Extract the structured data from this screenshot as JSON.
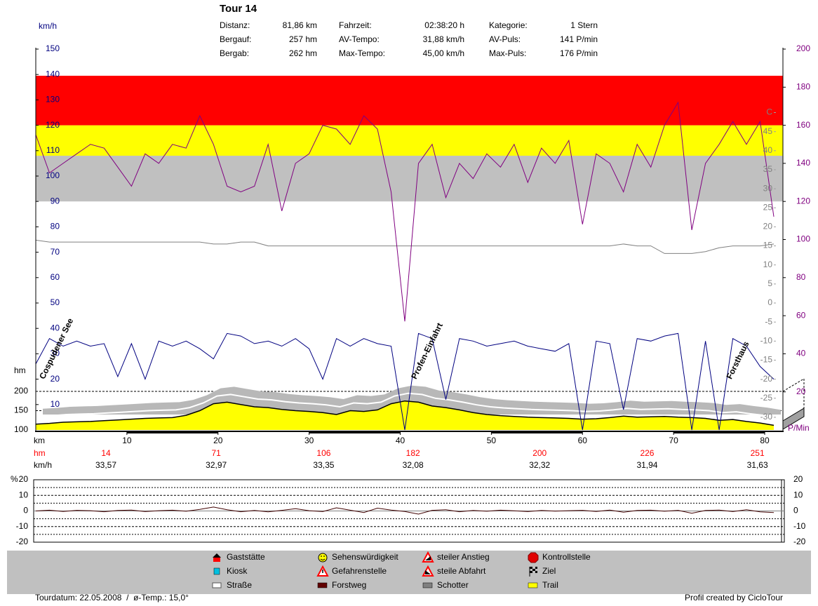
{
  "header": {
    "title": "Tour 14",
    "stats": [
      [
        {
          "label": "Distanz:",
          "value": "81,86 km"
        },
        {
          "label": "Fahrzeit:",
          "value": "02:38:20 h"
        },
        {
          "label": "Kategorie:",
          "value": "1 Stern"
        }
      ],
      [
        {
          "label": "Bergauf:",
          "value": "257 hm"
        },
        {
          "label": "AV-Tempo:",
          "value": "31,88 km/h"
        },
        {
          "label": "AV-Puls:",
          "value": "141 P/min"
        }
      ],
      [
        {
          "label": "Bergab:",
          "value": "262 hm"
        },
        {
          "label": "Max-Tempo:",
          "value": "45,00 km/h"
        },
        {
          "label": "Max-Puls:",
          "value": "176 P/min"
        }
      ]
    ]
  },
  "chart_data": [
    {
      "type": "line",
      "x": [
        0,
        1.5,
        3,
        4.5,
        6,
        7.5,
        9,
        10.5,
        12,
        13.5,
        15,
        16.5,
        18,
        19.5,
        21,
        22.5,
        24,
        25.5,
        27,
        28.5,
        30,
        31.5,
        33,
        34.5,
        36,
        37.5,
        39,
        40.5,
        42,
        43.5,
        45,
        46.5,
        48,
        49.5,
        51,
        52.5,
        54,
        55.5,
        57,
        58.5,
        60,
        61.5,
        63,
        64.5,
        66,
        67.5,
        69,
        70.5,
        72,
        73.5,
        75,
        76.5,
        78,
        79.5,
        81
      ],
      "xlim": [
        0,
        82
      ],
      "xticks": [
        10,
        20,
        30,
        40,
        50,
        60,
        70,
        80
      ],
      "xlabel": "km",
      "ylabel": "km/h",
      "ylim": [
        0,
        150
      ],
      "yticks": [
        10,
        20,
        30,
        40,
        50,
        60,
        70,
        80,
        90,
        100,
        110,
        120,
        130,
        140,
        150
      ],
      "y2label": "P/Min",
      "y2lim": [
        0,
        200
      ],
      "y2ticks": [
        20,
        40,
        60,
        80,
        100,
        120,
        140,
        160,
        180,
        200
      ],
      "y3lim": [
        -33.33,
        66.67
      ],
      "y3ticks": [
        -30,
        -25,
        -20,
        -15,
        -10,
        -5,
        0,
        5,
        10,
        15,
        20,
        25,
        30,
        35,
        40,
        45,
        {
          "value": 50,
          "label": "C"
        }
      ],
      "hmlabel": "hm",
      "hmlim": [
        100,
        1087
      ],
      "hmticks": [
        100,
        150,
        200
      ],
      "zones": [
        {
          "from": 120,
          "to": 144,
          "color": "#c0c0c0"
        },
        {
          "from": 144,
          "to": 160,
          "color": "#ffff00"
        },
        {
          "from": 160,
          "to": 186,
          "color": "#ff0000"
        }
      ],
      "series": [
        {
          "axis": "hm",
          "type": "area",
          "color": "#ffff00",
          "values": [
            115,
            117,
            120,
            121,
            122,
            124,
            126,
            128,
            130,
            131,
            132,
            138,
            150,
            168,
            172,
            166,
            160,
            158,
            153,
            150,
            148,
            145,
            140,
            150,
            148,
            152,
            168,
            175,
            172,
            162,
            158,
            152,
            145,
            140,
            137,
            135,
            133,
            132,
            131,
            130,
            128,
            129,
            132,
            136,
            133,
            134,
            135,
            133,
            132,
            130,
            125,
            127,
            122,
            118,
            112
          ]
        },
        {
          "axis": "y3",
          "color": "#808080",
          "values": [
            16.5,
            16,
            16,
            16,
            16,
            16,
            16,
            16,
            16,
            16,
            16,
            16,
            16,
            15.5,
            15.5,
            16,
            16,
            15,
            15,
            15,
            15,
            15,
            15,
            15,
            15,
            15,
            15,
            15,
            15,
            15,
            15,
            15,
            15,
            15,
            15,
            15,
            15,
            15,
            15,
            15,
            15,
            15,
            15,
            15.5,
            15,
            15,
            13,
            13,
            13,
            13.5,
            14.5,
            15,
            15,
            15,
            15.5
          ]
        },
        {
          "axis": "y2",
          "color": "#800080",
          "values": [
            155,
            135,
            140,
            145,
            150,
            148,
            138,
            128,
            145,
            140,
            150,
            148,
            165,
            150,
            128,
            125,
            128,
            150,
            115,
            140,
            145,
            160,
            158,
            150,
            165,
            158,
            125,
            57,
            140,
            150,
            122,
            140,
            132,
            145,
            138,
            150,
            130,
            148,
            140,
            152,
            108,
            145,
            140,
            125,
            150,
            138,
            160,
            172,
            105,
            140,
            150,
            162,
            150,
            162,
            112
          ]
        },
        {
          "axis": "y",
          "color": "#000080",
          "values": [
            26,
            36,
            33,
            35,
            33,
            34,
            21,
            34,
            20,
            35,
            33,
            35,
            32,
            28,
            38,
            37,
            34,
            35,
            33,
            36,
            32,
            20,
            36,
            33,
            36,
            34,
            33,
            0,
            38,
            36,
            12,
            36,
            35,
            33,
            34,
            35,
            33,
            32,
            31,
            34,
            0,
            35,
            34,
            8,
            36,
            35,
            37,
            38,
            0,
            35,
            0,
            36,
            33,
            25,
            20
          ]
        }
      ],
      "annotations": [
        {
          "text": "Cospudener See",
          "km": 0.4
        },
        {
          "text": "Profen-Einfahrt",
          "km": 41.2
        },
        {
          "text": "Forsthaus",
          "km": 75.8
        }
      ],
      "summary": {
        "hm_label": "hm",
        "speed_label": "km/h",
        "km": [
          7.7,
          19.8,
          31.6,
          41.4,
          55.3,
          67.1,
          79.2
        ],
        "hm": [
          14,
          71,
          106,
          182,
          200,
          226,
          251
        ],
        "speed": [
          33.57,
          32.97,
          33.35,
          32.08,
          32.32,
          31.94,
          31.63
        ],
        "speed_labels": [
          "33,57",
          "32,97",
          "33,35",
          "32,08",
          "32,32",
          "31,94",
          "31,63"
        ]
      }
    },
    {
      "type": "line",
      "ylabel": "%",
      "color": "#400000",
      "x": [
        0,
        1.5,
        3,
        4.5,
        6,
        7.5,
        9,
        10.5,
        12,
        13.5,
        15,
        16.5,
        18,
        19.5,
        21,
        22.5,
        24,
        25.5,
        27,
        28.5,
        30,
        31.5,
        33,
        34.5,
        36,
        37.5,
        39,
        40.5,
        42,
        43.5,
        45,
        46.5,
        48,
        49.5,
        51,
        52.5,
        54,
        55.5,
        57,
        58.5,
        60,
        61.5,
        63,
        64.5,
        66,
        67.5,
        69,
        70.5,
        72,
        73.5,
        75,
        76.5,
        78,
        79.5,
        81
      ],
      "xlim": [
        0,
        82
      ],
      "ylim": [
        -20,
        20
      ],
      "yticks": [
        -20,
        -10,
        0,
        10,
        20
      ],
      "values": [
        0,
        0.5,
        -0.3,
        0.4,
        0.2,
        -0.5,
        0.3,
        0.6,
        -0.4,
        0.2,
        0.5,
        -0.2,
        1,
        2.5,
        0.8,
        -0.5,
        0.3,
        -0.6,
        0.4,
        1.5,
        0.2,
        -0.4,
        2,
        0.5,
        -1,
        1.8,
        0.6,
        -0.3,
        -2,
        0.4,
        0.8,
        -0.5,
        0.3,
        -0.2,
        0.5,
        0.1,
        -0.4,
        0.3,
        -0.1,
        0.2,
        0.4,
        -0.3,
        0.6,
        -0.8,
        0.3,
        0.5,
        -0.2,
        0.4,
        -1.5,
        0.3,
        0.6,
        -0.4,
        0.8,
        -0.6,
        -1
      ]
    }
  ],
  "legend": [
    {
      "label": "Gaststätte"
    },
    {
      "label": "Kiosk"
    },
    {
      "label": "Straße"
    },
    {
      "label": "Sehenswürdigkeit"
    },
    {
      "label": "Gefahrenstelle"
    },
    {
      "label": "Forstweg"
    },
    {
      "label": "steiler Anstieg"
    },
    {
      "label": "steile Abfahrt"
    },
    {
      "label": "Schotter"
    },
    {
      "label": "Kontrollstelle"
    },
    {
      "label": "Ziel"
    },
    {
      "label": "Trail"
    }
  ],
  "footer": {
    "left": "Tourdatum: 22.05.2008  /  ø-Temp.: 15,0°",
    "right": "Profil created by CicloTour"
  }
}
